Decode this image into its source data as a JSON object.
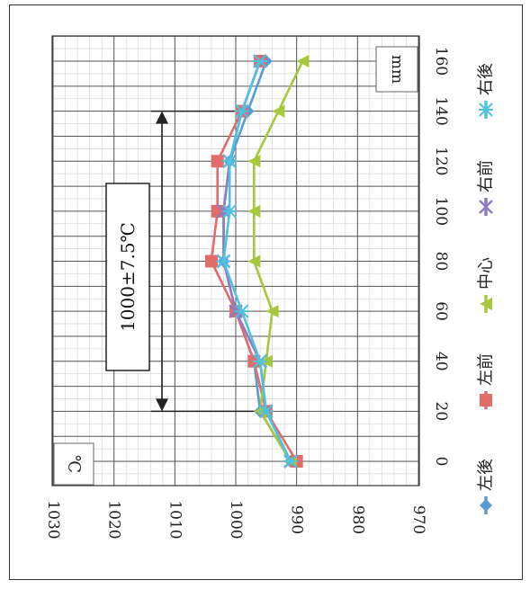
{
  "chart_data": {
    "type": "line",
    "orientation": "rotated-90-clockwise",
    "xlabel": "mm",
    "ylabel": "℃",
    "x": [
      0,
      20,
      40,
      60,
      80,
      100,
      120,
      140,
      160
    ],
    "x_ticks": [
      "0",
      "20",
      "40",
      "60",
      "80",
      "100",
      "120",
      "140",
      "160"
    ],
    "y_ticks": [
      "970",
      "980",
      "990",
      "1000",
      "1010",
      "1020",
      "1030"
    ],
    "xlim": [
      0,
      160
    ],
    "ylim": [
      970,
      1030
    ],
    "grid": true,
    "legend_position": "bottom",
    "annotation": {
      "label": "1000±7.5℃",
      "x_start": 20,
      "x_end": 140
    },
    "series": [
      {
        "name": "左後",
        "color": "#5b9bd5",
        "marker": "diamond",
        "values": [
          991,
          996,
          997,
          1000,
          1002,
          1002,
          1001,
          998,
          995
        ]
      },
      {
        "name": "左前",
        "color": "#e26b6b",
        "marker": "square",
        "values": [
          990,
          995,
          997,
          1000,
          1004,
          1003,
          1003,
          999,
          996
        ]
      },
      {
        "name": "中心",
        "color": "#a7c73c",
        "marker": "triangle",
        "values": [
          991,
          996,
          995,
          994,
          997,
          997,
          997,
          993,
          989
        ]
      },
      {
        "name": "右前",
        "color": "#8e7cc3",
        "marker": "x",
        "values": [
          991,
          995,
          996,
          1000,
          1002,
          1002,
          1001,
          999,
          996
        ]
      },
      {
        "name": "右後",
        "color": "#4ec3e0",
        "marker": "star",
        "values": [
          991,
          995,
          996,
          999,
          1002,
          1001,
          1001,
          999,
          996
        ]
      }
    ]
  }
}
